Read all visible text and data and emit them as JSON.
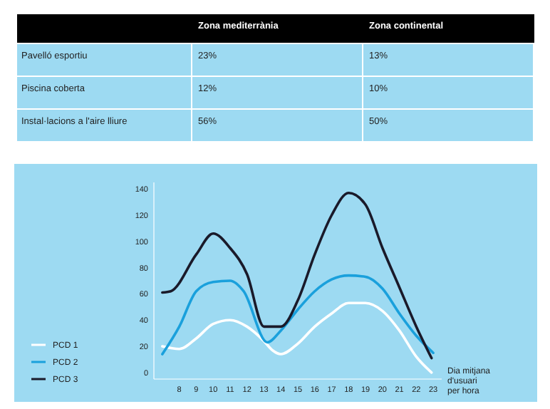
{
  "chart_data": [
    {
      "type": "other",
      "categories": [
        "Pavelló esportiu",
        "Piscina coberta",
        "Instal·lacions a l'aire lliure"
      ],
      "series": [
        {
          "name": "Zona mediterrània",
          "color": "#9ddaf2",
          "values": [
            23,
            12,
            56
          ],
          "value_labels": [
            "23%",
            "12%",
            "56%"
          ]
        },
        {
          "name": "Zona continental",
          "color": "#9ddaf2",
          "values": [
            13,
            10,
            50
          ],
          "value_labels": [
            "13%",
            "10%",
            "50%"
          ]
        }
      ]
    },
    {
      "type": "line",
      "xlabel": "Dia mitjana d'usuari per hora",
      "xlim": [
        6.5,
        23.5
      ],
      "ylim": [
        -5,
        145
      ],
      "xticks": [
        8,
        9,
        10,
        11,
        12,
        13,
        14,
        15,
        16,
        17,
        18,
        19,
        20,
        21,
        22,
        23
      ],
      "yticks": [
        0,
        20,
        40,
        60,
        80,
        100,
        120,
        140
      ],
      "grid": false,
      "legend": "left",
      "marker": "none",
      "series": [
        {
          "name": "PCD 1",
          "color": "#ffffff",
          "x": [
            7,
            8,
            9,
            10,
            11,
            12,
            13,
            13.5,
            14,
            15,
            16,
            17,
            18,
            19,
            20,
            21,
            22,
            22.9
          ],
          "values": [
            20,
            18,
            26,
            37,
            40,
            35,
            24,
            17,
            14,
            22,
            35,
            45,
            53,
            53,
            47,
            32,
            12,
            0
          ]
        },
        {
          "name": "PCD 2",
          "color": "#1aa0dc",
          "x": [
            7,
            8,
            9,
            10,
            11,
            11.8,
            13.2,
            14,
            15,
            16,
            17,
            18,
            19,
            20,
            21,
            22,
            23
          ],
          "values": [
            14,
            35,
            62,
            69,
            70,
            62,
            23,
            32,
            48,
            62,
            71,
            74,
            73,
            64,
            45,
            28,
            15
          ]
        },
        {
          "name": "PCD 3",
          "color": "#1a1a2a",
          "x": [
            7,
            7.5,
            9,
            10,
            11,
            12,
            13,
            14,
            15,
            16,
            17,
            18,
            19,
            20,
            21,
            22,
            22.9
          ],
          "values": [
            61,
            62,
            90,
            106,
            95,
            75,
            35,
            35,
            55,
            90,
            120,
            137,
            128,
            95,
            65,
            35,
            11
          ]
        }
      ]
    }
  ]
}
